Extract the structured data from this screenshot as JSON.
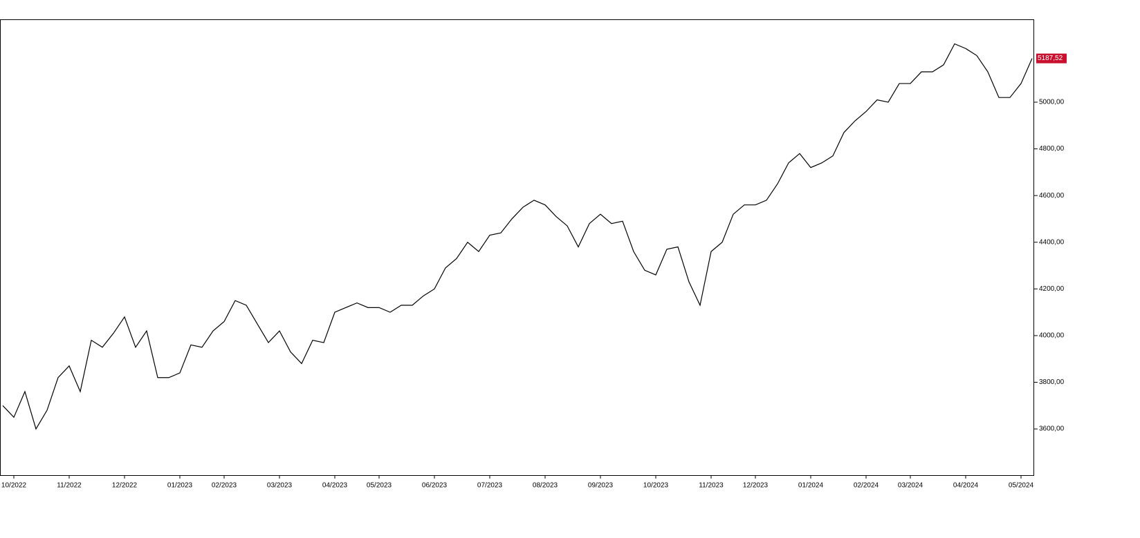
{
  "chart_data": {
    "type": "line",
    "categories": [
      null,
      "10/2022",
      null,
      null,
      null,
      null,
      "11/2022",
      null,
      null,
      null,
      null,
      "12/2022",
      null,
      null,
      null,
      null,
      "01/2023",
      null,
      null,
      null,
      "02/2023",
      null,
      null,
      null,
      null,
      "03/2023",
      null,
      null,
      null,
      null,
      "04/2023",
      null,
      null,
      null,
      "05/2023",
      null,
      null,
      null,
      null,
      "06/2023",
      null,
      null,
      null,
      null,
      "07/2023",
      null,
      null,
      null,
      null,
      "08/2023",
      null,
      null,
      null,
      null,
      "09/2023",
      null,
      null,
      null,
      null,
      "10/2023",
      null,
      null,
      null,
      null,
      "11/2023",
      null,
      null,
      null,
      "12/2023",
      null,
      null,
      null,
      null,
      "01/2024",
      null,
      null,
      null,
      null,
      "02/2024",
      null,
      null,
      null,
      "03/2024",
      null,
      null,
      null,
      null,
      "04/2024",
      null,
      null,
      null,
      null,
      "05/2024",
      null
    ],
    "values": [
      3700,
      3650,
      3760,
      3600,
      3680,
      3820,
      3870,
      3760,
      3980,
      3950,
      4010,
      4080,
      3950,
      4020,
      3820,
      3820,
      3840,
      3960,
      3950,
      4020,
      4060,
      4150,
      4130,
      4050,
      3970,
      4020,
      3930,
      3880,
      3980,
      3970,
      4100,
      4120,
      4140,
      4120,
      4120,
      4100,
      4130,
      4130,
      4170,
      4200,
      4290,
      4330,
      4400,
      4360,
      4430,
      4440,
      4500,
      4550,
      4580,
      4560,
      4510,
      4470,
      4380,
      4480,
      4520,
      4480,
      4490,
      4360,
      4280,
      4260,
      4370,
      4380,
      4230,
      4130,
      4360,
      4400,
      4520,
      4560,
      4560,
      4580,
      4650,
      4740,
      4780,
      4720,
      4740,
      4770,
      4870,
      4920,
      4960,
      5010,
      5000,
      5080,
      5080,
      5130,
      5130,
      5160,
      5250,
      5230,
      5200,
      5130,
      5020,
      5020,
      5080,
      5187.52
    ],
    "value_labels": [
      null,
      null,
      null,
      null,
      null,
      null,
      null,
      null,
      null,
      null,
      null,
      null,
      null,
      null,
      null,
      null,
      null,
      null,
      null,
      null,
      null,
      null,
      null,
      null,
      null,
      null,
      null,
      null,
      null,
      null,
      null,
      null,
      null,
      null,
      null,
      null,
      null,
      null,
      null,
      null,
      null,
      null,
      null,
      null,
      null,
      null,
      null,
      null,
      null,
      null,
      null,
      null,
      null,
      null,
      null,
      null,
      null,
      null,
      null,
      null,
      null,
      null,
      null,
      null,
      null,
      null,
      null,
      null,
      null,
      null,
      null,
      null,
      null,
      null,
      null,
      null,
      null,
      null,
      null,
      null,
      null,
      null,
      null,
      null,
      null,
      null,
      null,
      null,
      null,
      null,
      null,
      null,
      null,
      "5187,52"
    ],
    "color": "#000000",
    "label_color": "#c8102e",
    "ylim": [
      3402,
      5355
    ],
    "yticks": [
      {
        "value": 3600,
        "label": "3600,00"
      },
      {
        "value": 3800,
        "label": "3800,00"
      },
      {
        "value": 4000,
        "label": "4000,00"
      },
      {
        "value": 4200,
        "label": "4200,00"
      },
      {
        "value": 4400,
        "label": "4400,00"
      },
      {
        "value": 4600,
        "label": "4600,00"
      },
      {
        "value": 4800,
        "label": "4800,00"
      },
      {
        "value": 5000,
        "label": "5000,00"
      }
    ],
    "grid": false
  }
}
